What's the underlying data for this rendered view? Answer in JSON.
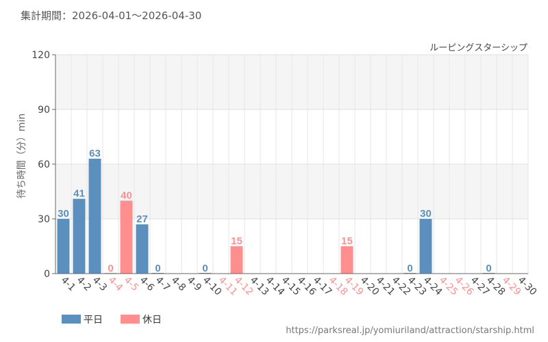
{
  "header": {
    "period_text": "集計期間：2026-04-01～2026-04-30"
  },
  "footer": {
    "source_url": "https://parksreal.jp/yomiuriland/attraction/starship.html"
  },
  "colors": {
    "weekday": "#5b8fbd",
    "holiday": "#ff8f8f",
    "axis_text": "#444444"
  },
  "chart_data": {
    "type": "bar",
    "title": "ルーピングスターシップ",
    "ylabel": "待ち時間（分）min",
    "xlabel": "",
    "ylim": [
      0,
      120
    ],
    "yticks": [
      0,
      30,
      60,
      90,
      120
    ],
    "grid": true,
    "legend": {
      "position": "bottom-left",
      "entries": [
        "平日",
        "休日"
      ]
    },
    "categories": [
      "4-1",
      "4-2",
      "4-3",
      "4-4",
      "4-5",
      "4-6",
      "4-7",
      "4-8",
      "4-9",
      "4-10",
      "4-11",
      "4-12",
      "4-13",
      "4-14",
      "4-15",
      "4-16",
      "4-17",
      "4-18",
      "4-19",
      "4-20",
      "4-21",
      "4-22",
      "4-23",
      "4-24",
      "4-25",
      "4-26",
      "4-27",
      "4-28",
      "4-29",
      "4-30"
    ],
    "holiday": [
      false,
      false,
      false,
      true,
      true,
      false,
      false,
      false,
      false,
      false,
      true,
      true,
      false,
      false,
      false,
      false,
      false,
      true,
      true,
      false,
      false,
      false,
      false,
      false,
      true,
      true,
      false,
      false,
      true,
      false
    ],
    "values": [
      30,
      41,
      63,
      0,
      40,
      27,
      0,
      null,
      null,
      0,
      null,
      15,
      null,
      null,
      null,
      null,
      null,
      null,
      15,
      null,
      null,
      null,
      0,
      30,
      null,
      null,
      null,
      0,
      null,
      null
    ],
    "series": [
      {
        "name": "平日",
        "color": "#5b8fbd"
      },
      {
        "name": "休日",
        "color": "#ff8f8f"
      }
    ]
  }
}
